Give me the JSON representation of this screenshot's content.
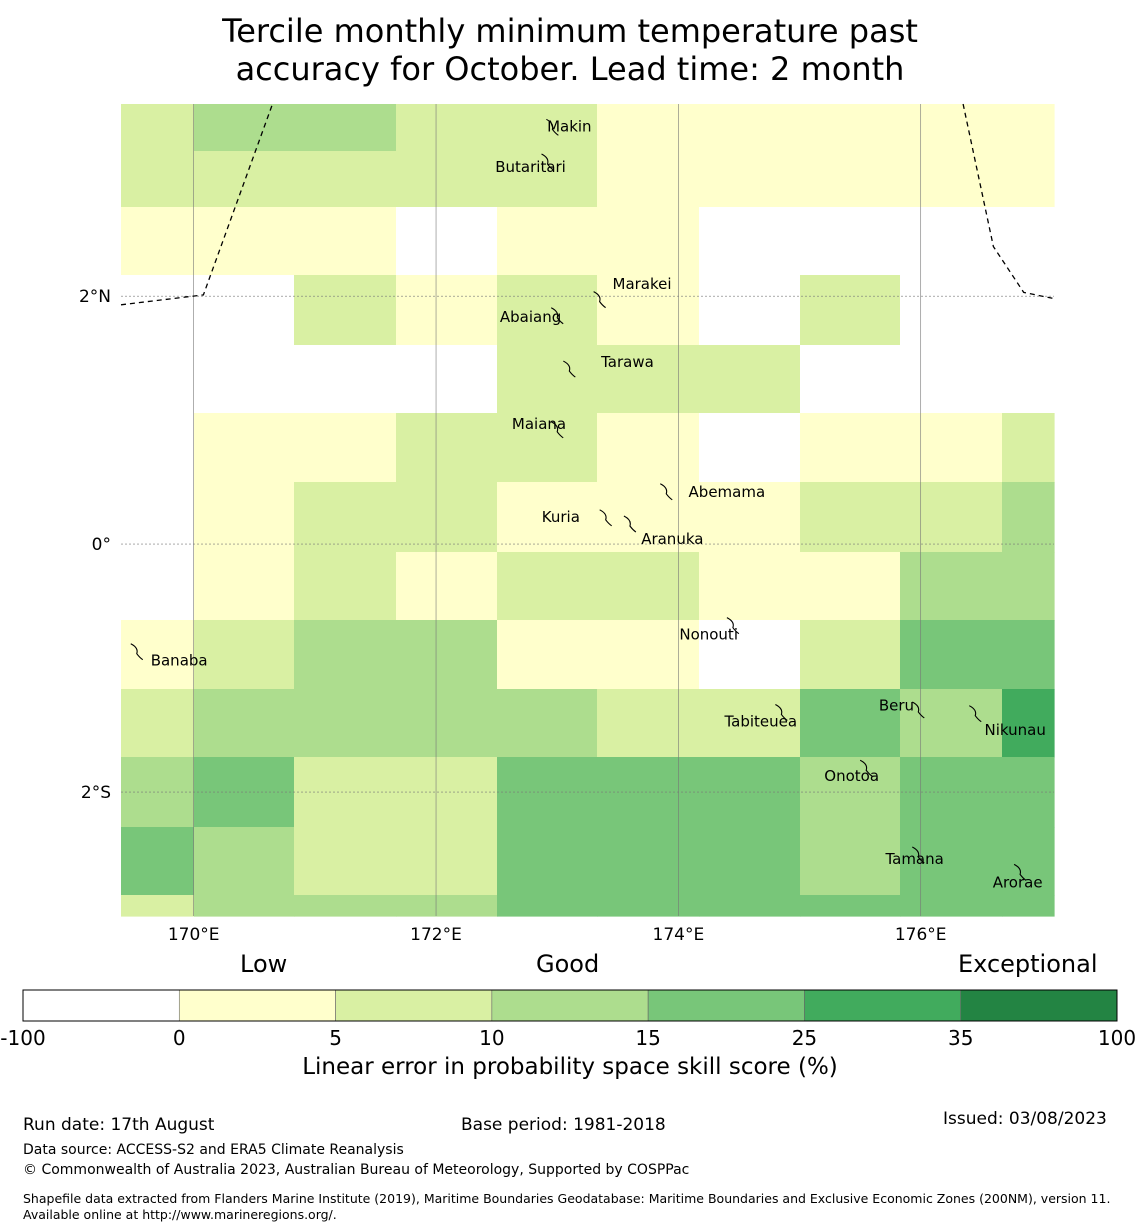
{
  "title": {
    "line1": "Tercile monthly minimum temperature past",
    "line2": "accuracy for October. Lead time: 2 month"
  },
  "map": {
    "lon_range": [
      169.4,
      177.1
    ],
    "lat_range": [
      -3.0,
      3.55
    ],
    "grid_x_edges": [
      169.4,
      170.0,
      170.83,
      171.67,
      172.5,
      173.33,
      174.17,
      175.0,
      175.83,
      176.67,
      177.1
    ],
    "grid_y_edges": [
      3.55,
      3.17,
      2.72,
      2.17,
      1.61,
      1.06,
      0.5,
      -0.06,
      -0.61,
      -1.17,
      -1.72,
      -2.28,
      -2.83,
      -3.0
    ],
    "cell_values": [
      [
        6,
        12,
        12,
        8,
        8,
        3,
        3,
        3,
        3,
        3
      ],
      [
        6,
        6,
        6,
        6,
        6,
        3,
        3,
        3,
        3,
        3
      ],
      [
        3,
        3,
        3,
        -5,
        3,
        3,
        -5,
        -5,
        -5,
        -5
      ],
      [
        -5,
        -5,
        6,
        3,
        6,
        3,
        -5,
        6,
        -5,
        -5
      ],
      [
        -5,
        -5,
        -5,
        -5,
        6,
        6,
        6,
        -5,
        -5,
        -5
      ],
      [
        -5,
        3,
        3,
        6,
        6,
        3,
        -5,
        3,
        3,
        8
      ],
      [
        -5,
        3,
        6,
        6,
        3,
        3,
        3,
        8,
        8,
        12
      ],
      [
        -5,
        3,
        6,
        3,
        8,
        8,
        3,
        3,
        12,
        12
      ],
      [
        3,
        6,
        12,
        12,
        3,
        3,
        -5,
        6,
        20,
        20
      ],
      [
        6,
        12,
        12,
        12,
        12,
        6,
        6,
        20,
        12,
        30
      ],
      [
        12,
        20,
        6,
        6,
        20,
        20,
        20,
        12,
        20,
        20
      ],
      [
        20,
        12,
        6,
        6,
        20,
        20,
        20,
        12,
        20,
        20
      ],
      [
        6,
        12,
        12,
        12,
        20,
        20,
        20,
        20,
        20,
        20
      ]
    ],
    "lon_ticks": [
      {
        "value": 170,
        "label": "170°E"
      },
      {
        "value": 172,
        "label": "172°E"
      },
      {
        "value": 174,
        "label": "174°E"
      },
      {
        "value": 176,
        "label": "176°E"
      }
    ],
    "lat_ticks": [
      {
        "value": 2,
        "label": "2°N"
      },
      {
        "value": 0,
        "label": "0°"
      },
      {
        "value": -2,
        "label": "2°S"
      }
    ],
    "islands": [
      {
        "name": "Makin",
        "lon": 172.96,
        "lat": 3.37,
        "label_lon": 173.1,
        "label_lat": 3.37
      },
      {
        "name": "Butaritari",
        "lon": 172.92,
        "lat": 3.09,
        "label_lon": 172.78,
        "label_lat": 3.04
      },
      {
        "name": "Marakei",
        "lon": 173.35,
        "lat": 1.98,
        "label_lon": 173.7,
        "label_lat": 2.1
      },
      {
        "name": "Abaiang",
        "lon": 173.0,
        "lat": 1.85,
        "label_lon": 172.78,
        "label_lat": 1.83
      },
      {
        "name": "Tarawa",
        "lon": 173.1,
        "lat": 1.42,
        "label_lon": 173.58,
        "label_lat": 1.47
      },
      {
        "name": "Maiana",
        "lon": 173.0,
        "lat": 0.93,
        "label_lon": 172.85,
        "label_lat": 0.97
      },
      {
        "name": "Abemama",
        "lon": 173.9,
        "lat": 0.43,
        "label_lon": 174.4,
        "label_lat": 0.42
      },
      {
        "name": "Kuria",
        "lon": 173.4,
        "lat": 0.22,
        "label_lon": 173.03,
        "label_lat": 0.22
      },
      {
        "name": "Aranuka",
        "lon": 173.6,
        "lat": 0.17,
        "label_lon": 173.95,
        "label_lat": 0.04
      },
      {
        "name": "Nonouti",
        "lon": 174.45,
        "lat": -0.65,
        "label_lon": 174.25,
        "label_lat": -0.73
      },
      {
        "name": "Banaba",
        "lon": 169.53,
        "lat": -0.86,
        "label_lon": 169.88,
        "label_lat": -0.94
      },
      {
        "name": "Tabiteuea",
        "lon": 174.85,
        "lat": -1.35,
        "label_lon": 174.68,
        "label_lat": -1.43
      },
      {
        "name": "Beru",
        "lon": 175.98,
        "lat": -1.33,
        "label_lon": 175.8,
        "label_lat": -1.3
      },
      {
        "name": "Nikunau",
        "lon": 176.45,
        "lat": -1.36,
        "label_lon": 176.78,
        "label_lat": -1.5
      },
      {
        "name": "Onotoa",
        "lon": 175.55,
        "lat": -1.8,
        "label_lon": 175.43,
        "label_lat": -1.87
      },
      {
        "name": "Tamana",
        "lon": 175.98,
        "lat": -2.5,
        "label_lon": 175.95,
        "label_lat": -2.54
      },
      {
        "name": "Arorae",
        "lon": 176.82,
        "lat": -2.64,
        "label_lon": 176.8,
        "label_lat": -2.73
      }
    ],
    "eez_west": [
      [
        169.4,
        1.93
      ],
      [
        170.08,
        2.01
      ],
      [
        170.65,
        3.55
      ]
    ],
    "eez_east": [
      [
        176.35,
        3.55
      ],
      [
        176.6,
        2.4
      ],
      [
        176.85,
        2.03
      ],
      [
        177.1,
        1.98
      ]
    ]
  },
  "colorbar": {
    "tier_labels": [
      "Low",
      "Good",
      "Exceptional"
    ],
    "bins": [
      {
        "from": -100,
        "to": 0,
        "color": "#ffffff"
      },
      {
        "from": 0,
        "to": 5,
        "color": "#ffffcc"
      },
      {
        "from": 5,
        "to": 10,
        "color": "#d9f0a3"
      },
      {
        "from": 10,
        "to": 15,
        "color": "#addd8e"
      },
      {
        "from": 15,
        "to": 25,
        "color": "#78c679"
      },
      {
        "from": 25,
        "to": 35,
        "color": "#41ab5d"
      },
      {
        "from": 35,
        "to": 100,
        "color": "#238443"
      }
    ],
    "tick_labels": [
      "-100",
      "0",
      "5",
      "10",
      "15",
      "25",
      "35",
      "100"
    ],
    "label": "Linear error in probability space skill score (%)"
  },
  "footer": {
    "run_date": "Run date: 17th August",
    "base_period": "Base period: 1981-2018",
    "issued": "Issued: 03/08/2023",
    "data_source": "Data source: ACCESS-S2 and ERA5 Climate Reanalysis",
    "copyright": "© Commonwealth of Australia 2023, Australian Bureau of Meteorology, Supported by COSPPac",
    "shapefile": "Shapefile data extracted from Flanders Marine Institute (2019), Maritime Boundaries Geodatabase: Maritime Boundaries and Exclusive Economic Zones (200NM), version 11. Available online at http://www.marineregions.org/."
  }
}
